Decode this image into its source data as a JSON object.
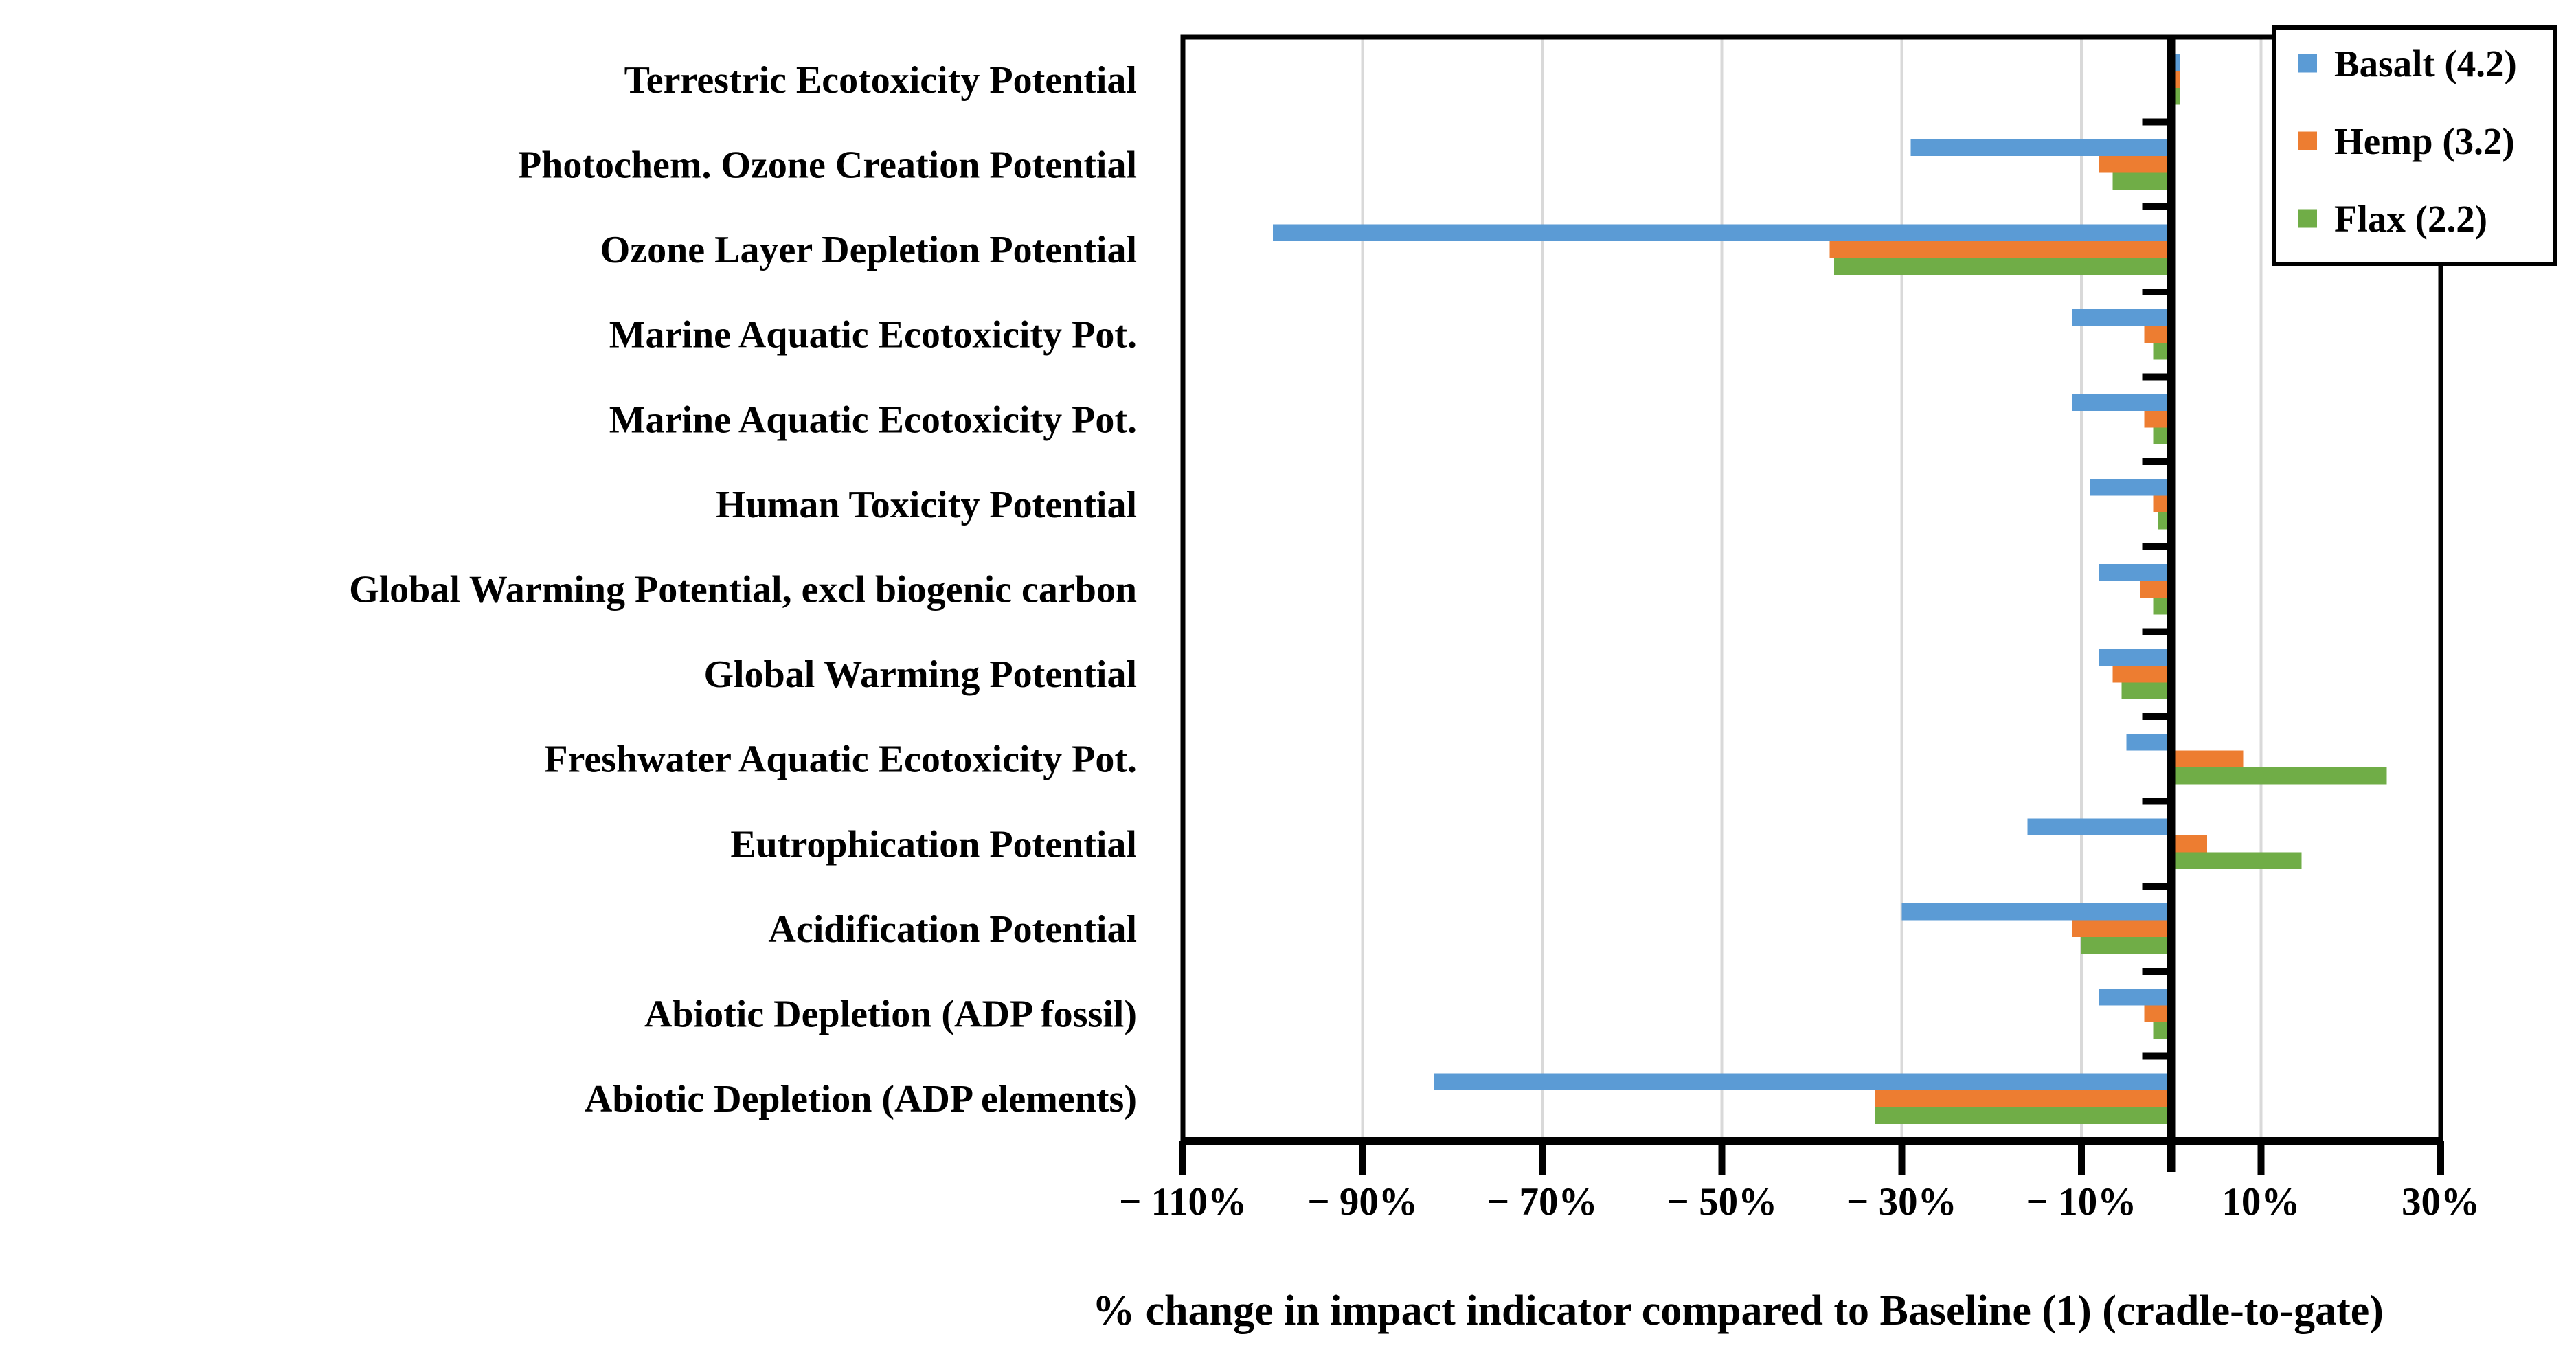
{
  "figure": {
    "background": "#ffffff",
    "border_color": "#000000",
    "gridline_color": "#d9d9d9"
  },
  "chart_data": {
    "type": "bar",
    "orientation": "horizontal",
    "title": "",
    "xlabel": "% change in impact indicator compared to Baseline (1) (cradle-to-gate)",
    "ylabel": "",
    "xlim": [
      -110,
      30
    ],
    "x_ticks": [
      -110,
      -90,
      -70,
      -50,
      -30,
      -10,
      10,
      30
    ],
    "x_tick_labels": [
      "− 110%",
      "− 90%",
      "− 70%",
      "− 50%",
      "− 30%",
      "− 10%",
      "10%",
      "30%"
    ],
    "grid": "vertical-major",
    "baseline_value": 0,
    "legend_position": "top-right-inside",
    "categories": [
      "Terrestric Ecotoxicity Potential",
      "Photochem. Ozone Creation Potential",
      "Ozone Layer Depletion Potential",
      "Marine Aquatic Ecotoxicity Pot.",
      "Marine Aquatic Ecotoxicity Pot.",
      "Human Toxicity Potential",
      "Global Warming Potential, excl biogenic carbon",
      "Global Warming Potential",
      "Freshwater Aquatic Ecotoxicity Pot.",
      "Eutrophication Potential",
      "Acidification Potential",
      "Abiotic Depletion (ADP fossil)",
      "Abiotic Depletion (ADP elements)"
    ],
    "series": [
      {
        "name": "Basalt (4.2)",
        "color": "#5B9BD5",
        "values": [
          1,
          -29,
          -100,
          -11,
          -11,
          -9,
          -8,
          -8,
          -5,
          -16,
          -30,
          -8,
          -82
        ]
      },
      {
        "name": "Hemp (3.2)",
        "color": "#ED7D31",
        "values": [
          1,
          -8,
          -38,
          -3,
          -3,
          -2,
          -3.5,
          -6.5,
          8,
          4,
          -11,
          -3,
          -33
        ]
      },
      {
        "name": "Flax (2.2)",
        "color": "#70AD47",
        "values": [
          1,
          -6.5,
          -37.5,
          -2,
          -2,
          -1.5,
          -2,
          -5.5,
          24,
          14.5,
          -10,
          -2,
          -33
        ]
      }
    ]
  }
}
